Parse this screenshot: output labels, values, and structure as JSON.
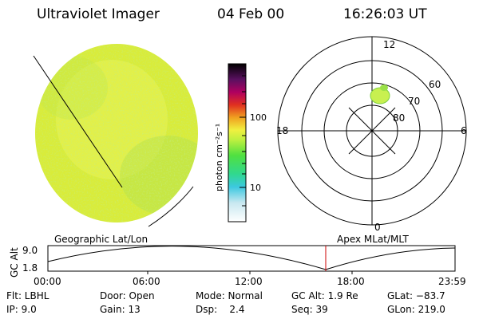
{
  "header": {
    "title": "Ultraviolet Imager",
    "date": "04 Feb 00",
    "time": "16:26:03 UT"
  },
  "colorbar": {
    "label": "photon cm⁻²s⁻¹",
    "ticks": [
      "100",
      "10"
    ]
  },
  "polar": {
    "mlt_labels": [
      "12",
      "18",
      "6",
      "0"
    ],
    "lat_labels": [
      "60",
      "70",
      "80"
    ]
  },
  "timeline": {
    "left_caption": "Geographic Lat/Lon",
    "right_caption": "Apex MLat/MLT",
    "axis_label": "GC Alt",
    "y_ticks": [
      "9.0",
      "1.8"
    ],
    "x_ticks": [
      "00:00",
      "06:00",
      "12:00",
      "18:00",
      "23:59"
    ]
  },
  "footer": {
    "row1": [
      {
        "key": "flt",
        "text": "Flt: LBHL"
      },
      {
        "key": "door",
        "text": "Door: Open"
      },
      {
        "key": "mode",
        "text": "Mode: Normal"
      },
      {
        "key": "gcalt",
        "text": "GC Alt: 1.9 Re"
      },
      {
        "key": "glat",
        "text": "GLat: −83.7"
      }
    ],
    "row2": [
      {
        "key": "ip",
        "text": "IP:  9.0"
      },
      {
        "key": "gain",
        "text": "Gain: 13"
      },
      {
        "key": "dsp",
        "text": "Dsp:    2.4"
      },
      {
        "key": "seq",
        "text": "Seq: 39"
      },
      {
        "key": "glon",
        "text": "GLon: 219.0"
      }
    ]
  },
  "colors": {
    "disk_base": "#d9ec3a",
    "disk_light": "#eef55a",
    "disk_green": "#9ad84a",
    "oval": "#c8f050",
    "marker_red": "#cc0000"
  }
}
